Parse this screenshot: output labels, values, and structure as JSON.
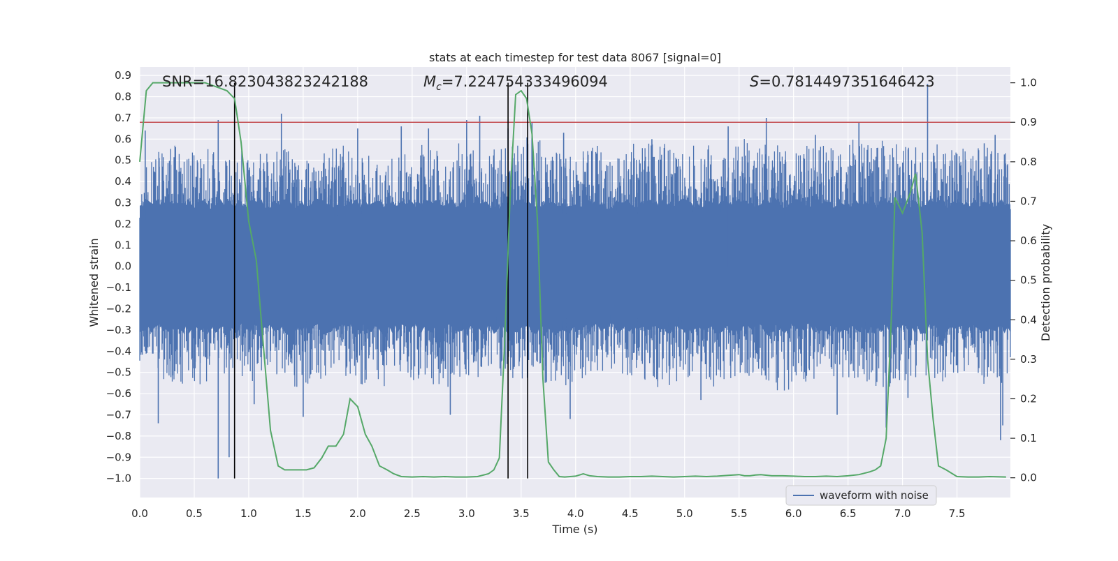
{
  "chart_data": {
    "type": "line",
    "title": "stats at each timestep for test data 8067 [signal=0]",
    "xlabel": "Time (s)",
    "ylabel_left": "Whitened strain",
    "ylabel_right": "Detection probability",
    "xlim": [
      0.0,
      7.99
    ],
    "ylim_left": [
      -1.09,
      0.94
    ],
    "ylim_right": [
      -0.05,
      1.04
    ],
    "x_ticks": [
      "0.0",
      "0.5",
      "1.0",
      "1.5",
      "2.0",
      "2.5",
      "3.0",
      "3.5",
      "4.0",
      "4.5",
      "5.0",
      "5.5",
      "6.0",
      "6.5",
      "7.0",
      "7.5"
    ],
    "x_tick_values": [
      0.0,
      0.5,
      1.0,
      1.5,
      2.0,
      2.5,
      3.0,
      3.5,
      4.0,
      4.5,
      5.0,
      5.5,
      6.0,
      6.5,
      7.0,
      7.5
    ],
    "y_left_ticks": [
      "0.9",
      "0.8",
      "0.7",
      "0.6",
      "0.5",
      "0.4",
      "0.3",
      "0.2",
      "0.1",
      "0.0",
      "−0.1",
      "−0.2",
      "−0.3",
      "−0.4",
      "−0.5",
      "−0.6",
      "−0.7",
      "−0.8",
      "−0.9",
      "−1.0"
    ],
    "y_left_tick_values": [
      0.9,
      0.8,
      0.7,
      0.6,
      0.5,
      0.4,
      0.3,
      0.2,
      0.1,
      0.0,
      -0.1,
      -0.2,
      -0.3,
      -0.4,
      -0.5,
      -0.6,
      -0.7,
      -0.8,
      -0.9,
      -1.0
    ],
    "y_right_ticks": [
      "1.0",
      "0.9",
      "0.8",
      "0.7",
      "0.6",
      "0.5",
      "0.4",
      "0.3",
      "0.2",
      "0.1",
      "0.0"
    ],
    "y_right_tick_values": [
      1.0,
      0.9,
      0.8,
      0.7,
      0.6,
      0.5,
      0.4,
      0.3,
      0.2,
      0.1,
      0.0
    ],
    "grid": true,
    "legend_position": "bottom-right",
    "annotations": {
      "snr": "SNR=16.823043823242188",
      "mc_symbol": "M",
      "mc_sub": "c",
      "mc_value": "=7.224754333496094",
      "s_symbol": "S",
      "s_value": "=0.7814497351646423"
    },
    "threshold": {
      "axis": "right",
      "value": 0.9,
      "color": "#c44e52"
    },
    "vertical_lines": [
      0.87,
      3.38,
      3.56
    ],
    "series": [
      {
        "name": "waveform with noise",
        "axis": "left",
        "color": "#4c72b0",
        "envelope": {
          "x": [
            0.0,
            0.2,
            0.4,
            0.6,
            0.8,
            1.0,
            1.2,
            1.4,
            1.6,
            1.8,
            2.0,
            2.2,
            2.4,
            2.6,
            2.8,
            3.0,
            3.2,
            3.4,
            3.6,
            3.8,
            4.0,
            4.2,
            4.4,
            4.6,
            4.8,
            5.0,
            5.2,
            5.4,
            5.6,
            5.8,
            6.0,
            6.2,
            6.4,
            6.6,
            6.8,
            7.0,
            7.2,
            7.4,
            7.6,
            7.8,
            7.99
          ],
          "upper": [
            0.45,
            0.56,
            0.58,
            0.55,
            0.6,
            0.52,
            0.58,
            0.55,
            0.5,
            0.58,
            0.55,
            0.5,
            0.52,
            0.58,
            0.55,
            0.6,
            0.55,
            0.58,
            0.62,
            0.55,
            0.55,
            0.58,
            0.55,
            0.6,
            0.58,
            0.55,
            0.6,
            0.55,
            0.62,
            0.58,
            0.55,
            0.58,
            0.55,
            0.62,
            0.6,
            0.58,
            0.55,
            0.6,
            0.55,
            0.58,
            0.55
          ],
          "lower": [
            -0.45,
            -0.55,
            -0.6,
            -0.55,
            -0.5,
            -0.55,
            -0.5,
            -0.58,
            -0.55,
            -0.5,
            -0.55,
            -0.58,
            -0.52,
            -0.55,
            -0.58,
            -0.55,
            -0.5,
            -0.55,
            -0.52,
            -0.58,
            -0.55,
            -0.52,
            -0.5,
            -0.55,
            -0.58,
            -0.52,
            -0.6,
            -0.55,
            -0.52,
            -0.58,
            -0.6,
            -0.55,
            -0.52,
            -0.55,
            -0.58,
            -0.55,
            -0.52,
            -0.55,
            -0.5,
            -0.58,
            -0.55
          ]
        },
        "spikes": [
          {
            "x": 0.05,
            "y": 0.64
          },
          {
            "x": 0.17,
            "y": -0.74
          },
          {
            "x": 0.72,
            "y": 0.69
          },
          {
            "x": 0.72,
            "y": -1.0
          },
          {
            "x": 0.82,
            "y": -0.9
          },
          {
            "x": 1.3,
            "y": 0.72
          },
          {
            "x": 1.05,
            "y": -0.65
          },
          {
            "x": 1.5,
            "y": -0.71
          },
          {
            "x": 2.0,
            "y": 0.65
          },
          {
            "x": 2.4,
            "y": 0.66
          },
          {
            "x": 2.65,
            "y": 0.65
          },
          {
            "x": 2.85,
            "y": -0.7
          },
          {
            "x": 3.0,
            "y": 0.69
          },
          {
            "x": 3.12,
            "y": 0.71
          },
          {
            "x": 3.38,
            "y": 0.65
          },
          {
            "x": 3.6,
            "y": 0.68
          },
          {
            "x": 3.89,
            "y": 0.63
          },
          {
            "x": 3.95,
            "y": -0.72
          },
          {
            "x": 5.15,
            "y": -0.63
          },
          {
            "x": 5.4,
            "y": 0.66
          },
          {
            "x": 5.75,
            "y": 0.7
          },
          {
            "x": 6.4,
            "y": -0.7
          },
          {
            "x": 6.6,
            "y": 0.68
          },
          {
            "x": 6.85,
            "y": -0.76
          },
          {
            "x": 7.05,
            "y": -0.62
          },
          {
            "x": 7.23,
            "y": 0.86
          },
          {
            "x": 7.85,
            "y": 0.62
          },
          {
            "x": 7.9,
            "y": -0.82
          },
          {
            "x": 7.92,
            "y": -0.75
          },
          {
            "x": 7.75,
            "y": 0.58
          },
          {
            "x": 6.2,
            "y": 0.62
          },
          {
            "x": 4.7,
            "y": 0.6
          }
        ]
      },
      {
        "name": "detection probability",
        "axis": "right",
        "color": "#55a868",
        "x": [
          0.0,
          0.06,
          0.12,
          0.2,
          0.3,
          0.4,
          0.5,
          0.6,
          0.7,
          0.8,
          0.87,
          0.93,
          1.0,
          1.07,
          1.13,
          1.2,
          1.27,
          1.33,
          1.4,
          1.47,
          1.53,
          1.6,
          1.67,
          1.73,
          1.8,
          1.87,
          1.93,
          2.0,
          2.07,
          2.13,
          2.2,
          2.27,
          2.33,
          2.4,
          2.5,
          2.6,
          2.7,
          2.8,
          2.9,
          3.0,
          3.1,
          3.2,
          3.25,
          3.3,
          3.35,
          3.4,
          3.45,
          3.5,
          3.55,
          3.6,
          3.65,
          3.7,
          3.75,
          3.8,
          3.85,
          3.9,
          4.0,
          4.07,
          4.13,
          4.2,
          4.3,
          4.4,
          4.5,
          4.6,
          4.7,
          4.8,
          4.9,
          5.0,
          5.1,
          5.2,
          5.3,
          5.4,
          5.5,
          5.55,
          5.6,
          5.65,
          5.7,
          5.8,
          5.9,
          6.0,
          6.1,
          6.2,
          6.3,
          6.4,
          6.5,
          6.6,
          6.7,
          6.75,
          6.8,
          6.85,
          6.9,
          6.93,
          7.0,
          7.07,
          7.12,
          7.18,
          7.23,
          7.28,
          7.33,
          7.4,
          7.5,
          7.6,
          7.7,
          7.8,
          7.95
        ],
        "y": [
          0.8,
          0.98,
          1.0,
          1.0,
          1.0,
          1.0,
          1.0,
          1.0,
          0.99,
          0.98,
          0.96,
          0.85,
          0.65,
          0.55,
          0.35,
          0.12,
          0.03,
          0.02,
          0.02,
          0.02,
          0.02,
          0.025,
          0.05,
          0.08,
          0.08,
          0.11,
          0.2,
          0.18,
          0.11,
          0.08,
          0.03,
          0.02,
          0.01,
          0.003,
          0.002,
          0.003,
          0.002,
          0.003,
          0.002,
          0.002,
          0.003,
          0.01,
          0.02,
          0.05,
          0.35,
          0.72,
          0.97,
          0.98,
          0.96,
          0.87,
          0.65,
          0.25,
          0.04,
          0.02,
          0.003,
          0.002,
          0.004,
          0.01,
          0.005,
          0.003,
          0.002,
          0.002,
          0.003,
          0.003,
          0.004,
          0.003,
          0.002,
          0.003,
          0.004,
          0.003,
          0.004,
          0.006,
          0.008,
          0.005,
          0.005,
          0.007,
          0.008,
          0.005,
          0.005,
          0.004,
          0.003,
          0.003,
          0.004,
          0.003,
          0.005,
          0.008,
          0.015,
          0.02,
          0.03,
          0.1,
          0.42,
          0.71,
          0.67,
          0.72,
          0.77,
          0.62,
          0.3,
          0.15,
          0.03,
          0.02,
          0.003,
          0.002,
          0.002,
          0.003,
          0.002
        ]
      }
    ]
  }
}
